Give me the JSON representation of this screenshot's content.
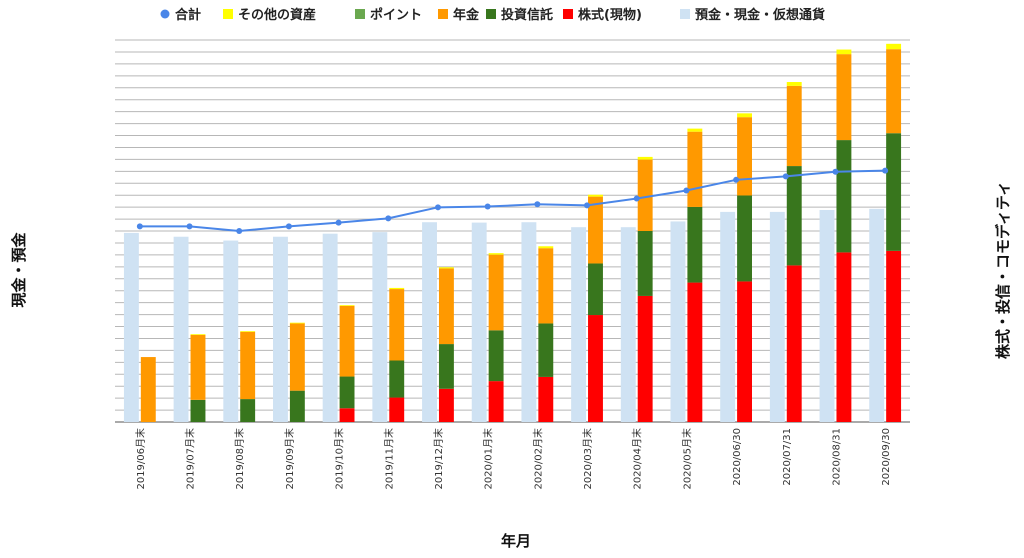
{
  "chart_data": {
    "type": "bar",
    "stacked": true,
    "title": "",
    "xlabel": "年月",
    "ylabel_left": "現金・預金",
    "ylabel_right": "株式・投信・コモディティ",
    "legend_position": "top",
    "grid": true,
    "categories": [
      "2019/06月末",
      "2019/07月末",
      "2019/08月末",
      "2019/09月末",
      "2019/10月末",
      "2019/11月末",
      "2019/12月末",
      "2020/01月末",
      "2020/02月末",
      "2020/03月末",
      "2020/04月末",
      "2020/05月末",
      "2020/06/30",
      "2020/07/31",
      "2020/08/31",
      "2020/09/30"
    ],
    "left_axis": {
      "ylim": [
        0,
        100
      ],
      "ticks_shown": false
    },
    "right_axis": {
      "ylim": [
        0,
        100
      ],
      "ticks_shown": false
    },
    "cash_series": {
      "name": "預金・現金・仮想通貨",
      "color": "#cfe2f3",
      "values": [
        49.5,
        48.5,
        47.5,
        48.5,
        49.3,
        49.7,
        52.3,
        52.2,
        52.3,
        51.0,
        51.0,
        52.5,
        55.0,
        55.0,
        55.5,
        55.8
      ]
    },
    "stack_series": [
      {
        "name": "株式(現物)",
        "color": "#ff0000",
        "values": [
          0,
          0,
          0,
          0,
          3.6,
          6.4,
          8.7,
          10.7,
          11.8,
          28.0,
          33.0,
          36.5,
          36.8,
          41.0,
          44.4,
          44.8
        ]
      },
      {
        "name": "投資信託",
        "color": "#38761d",
        "values": [
          0,
          5.8,
          6.0,
          8.2,
          8.3,
          9.7,
          11.7,
          13.3,
          14.0,
          13.5,
          17.0,
          19.8,
          22.5,
          26.0,
          29.4,
          30.8
        ]
      },
      {
        "name": "年金",
        "color": "#ff9900",
        "values": [
          17.0,
          17.0,
          17.6,
          17.6,
          18.5,
          18.7,
          19.8,
          19.8,
          19.7,
          17.5,
          18.7,
          19.7,
          20.5,
          21.0,
          22.5,
          22.0
        ]
      },
      {
        "name": "ポイント",
        "color": "#6aa84f",
        "values": [
          0,
          0,
          0,
          0,
          0,
          0,
          0,
          0,
          0,
          0,
          0,
          0,
          0,
          0,
          0,
          0
        ]
      },
      {
        "name": "その他の資産",
        "color": "#ffff00",
        "values": [
          0,
          0.2,
          0.2,
          0.2,
          0.2,
          0.3,
          0.3,
          0.4,
          0.5,
          0.5,
          0.7,
          0.8,
          1.0,
          1.0,
          1.2,
          1.4
        ]
      }
    ],
    "line_series": {
      "name": "合計",
      "color": "#4a86e8",
      "values": [
        51.2,
        51.2,
        50.0,
        51.2,
        52.2,
        53.3,
        56.2,
        56.4,
        57.0,
        56.7,
        58.5,
        60.6,
        63.4,
        64.3,
        65.5,
        65.8
      ]
    },
    "legend_order": [
      "合計",
      "その他の資産",
      "ポイント",
      "年金",
      "投資信託",
      "株式(現物)",
      "預金・現金・仮想通貨"
    ]
  }
}
